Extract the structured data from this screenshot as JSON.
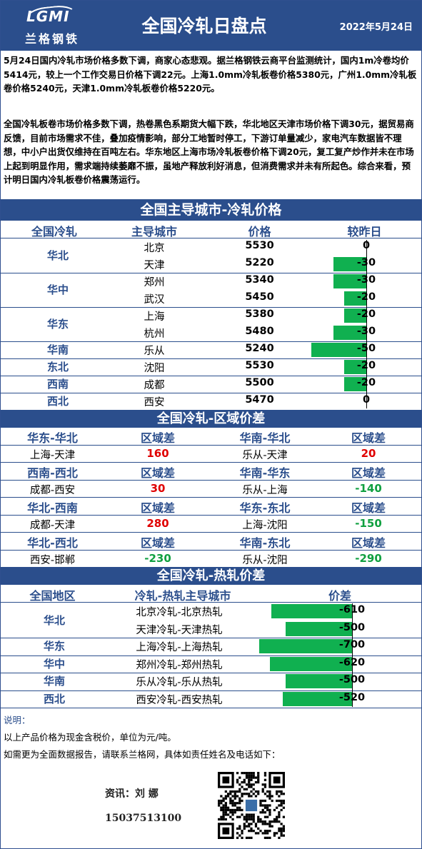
{
  "header": {
    "logo_text": "LGMI",
    "logo_cn": "兰格钢铁",
    "title": "全国冷轧日盘点",
    "date": "2022年5月24日"
  },
  "summary_1": "5月24日国内冷轧市场价格多数下调，商家心态悲观。据兰格钢铁云商平台监测统计，国内1m冷卷均价5414元，较上一个工作交易日价格下调22元。上海1.0mm冷轧板卷价格5380元，广州1.0mm冷轧板卷价格5240元，天津1.0mm冷轧板卷价格5220元。",
  "summary_2": "全国冷轧板卷市场价格多数下调，热卷黑色系期货大幅下跌，华北地区天津市场价格下调30元，据贸易商反馈，目前市场需求不佳，叠加疫情影响，部分工地暂时停工，下游订单量减少，家电汽车数据皆不理想，中小户出货仅维持在百吨左右。华东地区上海市场冷轧板卷价格下调20元，复工复产炒作并未在市场上起到明显作用，需求端持续萎靡不振，虽地产释放利好消息，但消费需求并未有所起色。综合来看，预计明日国内冷轧板卷价格震荡运行。",
  "section1": {
    "title": "全国主导城市-冷轧价格",
    "headers": [
      "全国冷轧",
      "主导城市",
      "价格",
      "较昨日"
    ],
    "groups": [
      {
        "region": "华北",
        "rows": [
          {
            "city": "北京",
            "price": "5530",
            "change": 0
          },
          {
            "city": "天津",
            "price": "5220",
            "change": -30
          }
        ]
      },
      {
        "region": "华中",
        "rows": [
          {
            "city": "郑州",
            "price": "5340",
            "change": -30
          },
          {
            "city": "武汉",
            "price": "5450",
            "change": -20
          }
        ]
      },
      {
        "region": "华东",
        "rows": [
          {
            "city": "上海",
            "price": "5380",
            "change": -20
          },
          {
            "city": "杭州",
            "price": "5480",
            "change": -30
          }
        ]
      },
      {
        "region": "华南",
        "rows": [
          {
            "city": "乐从",
            "price": "5240",
            "change": -50
          }
        ]
      },
      {
        "region": "东北",
        "rows": [
          {
            "city": "沈阳",
            "price": "5530",
            "change": -20
          }
        ]
      },
      {
        "region": "西南",
        "rows": [
          {
            "city": "成都",
            "price": "5500",
            "change": -20
          }
        ]
      },
      {
        "region": "西北",
        "rows": [
          {
            "city": "西安",
            "price": "5470",
            "change": 0
          }
        ]
      }
    ]
  },
  "section2": {
    "title": "全国冷轧-区域价差",
    "label": "区域差",
    "blocks": [
      {
        "left_head": "华东-华北",
        "left_pair": "上海-天津",
        "left_val": "160",
        "left_color": "red",
        "right_head": "华南-华北",
        "right_pair": "乐从-天津",
        "right_val": "20",
        "right_color": "red"
      },
      {
        "left_head": "西南-西北",
        "left_pair": "成都-西安",
        "left_val": "30",
        "left_color": "red",
        "right_head": "华南-华东",
        "right_pair": "乐从-上海",
        "right_val": "-140",
        "right_color": "green"
      },
      {
        "left_head": "华北-西南",
        "left_pair": "成都-天津",
        "left_val": "280",
        "left_color": "red",
        "right_head": "华东-东北",
        "right_pair": "上海-沈阳",
        "right_val": "-150",
        "right_color": "green"
      },
      {
        "left_head": "华北-西北",
        "left_pair": "西安-邯郸",
        "left_val": "-230",
        "left_color": "green",
        "right_head": "华南-东北",
        "right_pair": "乐从-沈阳",
        "right_val": "-290",
        "right_color": "green"
      }
    ]
  },
  "section3": {
    "title": "全国冷轧-热轧价差",
    "headers": [
      "全国地区",
      "冷轧-热轧主导城市",
      "价差"
    ],
    "rows": [
      {
        "region": "华北",
        "pair": "北京冷轧-北京热轧",
        "value": -610
      },
      {
        "region": "",
        "pair": "天津冷轧-天津热轧",
        "value": -500
      },
      {
        "region": "华东",
        "pair": "上海冷轧-上海热轧",
        "value": -700
      },
      {
        "region": "华中",
        "pair": "郑州冷轧-郑州热轧",
        "value": -620
      },
      {
        "region": "华南",
        "pair": "乐从冷轧-乐从热轧",
        "value": -500
      },
      {
        "region": "西北",
        "pair": "西安冷轧-西安热轧",
        "value": -520
      }
    ]
  },
  "notes": {
    "label": "说明：",
    "line1": "以上产品价格为现金含税价，单位为元/吨。",
    "line2": "如需更为全面数据报告，请联系兰格网，具体如责任姓名及电话如下：",
    "contact_name": "资讯：刘 娜",
    "contact_phone": "15037513100"
  },
  "colors": {
    "brand": "#2b4e8c",
    "bar": "#10b050",
    "up": "#e00000",
    "down": "#10a040"
  }
}
